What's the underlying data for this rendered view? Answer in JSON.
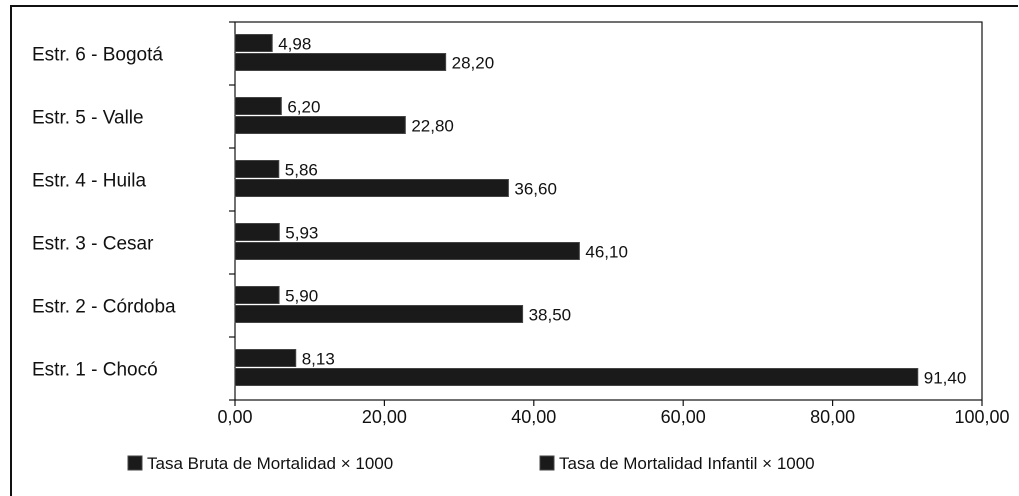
{
  "chart_data": {
    "type": "bar",
    "orientation": "horizontal",
    "title": "",
    "xlabel": "",
    "ylabel": "",
    "categories": [
      "Estr. 1 - Chocó",
      "Estr. 2 - Córdoba",
      "Estr. 3 - Cesar",
      "Estr. 4 - Huila",
      "Estr. 5 - Valle",
      "Estr. 6 - Bogotá"
    ],
    "series": [
      {
        "name": "Tasa Bruta de Mortalidad × 1000",
        "values": [
          8.13,
          5.9,
          5.93,
          5.86,
          6.2,
          4.98
        ],
        "labels": [
          "8,13",
          "5,90",
          "5,93",
          "5,86",
          "6,20",
          "4,98"
        ]
      },
      {
        "name": "Tasa de Mortalidad Infantil × 1000",
        "values": [
          91.4,
          38.5,
          46.1,
          36.6,
          22.8,
          28.2
        ],
        "labels": [
          "91,40",
          "38,50",
          "46,10",
          "36,60",
          "22,80",
          "28,20"
        ]
      }
    ],
    "xlim": [
      0,
      100
    ],
    "xticks": [
      0,
      20,
      40,
      60,
      80,
      100
    ],
    "xtick_labels": [
      "0,00",
      "20,00",
      "40,00",
      "60,00",
      "80,00",
      "100,00"
    ],
    "grid": false,
    "legend_position": "bottom",
    "bar_color": "#1a1a1a"
  }
}
